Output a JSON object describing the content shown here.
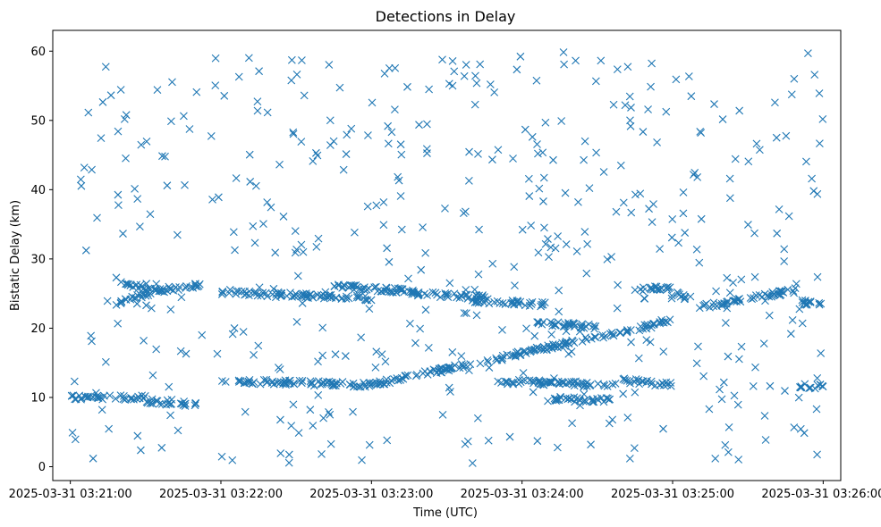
{
  "chart_data": {
    "type": "scatter",
    "title": "Detections in Delay",
    "xlabel": "Time (UTC)",
    "ylabel": "Bistatic Delay (km)",
    "marker": "x",
    "color": "#1f77b4",
    "x_unit": "time (UTC)",
    "xlim": [
      "2025-03-31 03:20:53",
      "2025-03-31 03:26:07"
    ],
    "ylim": [
      -2,
      63
    ],
    "x_ticks": [
      "2025-03-31 03:21:00",
      "2025-03-31 03:22:00",
      "2025-03-31 03:23:00",
      "2025-03-31 03:24:00",
      "2025-03-31 03:25:00",
      "2025-03-31 03:26:00"
    ],
    "y_ticks": [
      0,
      10,
      20,
      30,
      40,
      50,
      60
    ],
    "grid": false,
    "trends": [
      {
        "x": [
          "2025-03-31 03:21:00",
          "2025-03-31 03:21:30"
        ],
        "y": [
          10.0,
          10.0
        ]
      },
      {
        "x": [
          "2025-03-31 03:21:30",
          "2025-03-31 03:21:50"
        ],
        "y": [
          9.5,
          9.0
        ]
      },
      {
        "x": [
          "2025-03-31 03:22:00",
          "2025-03-31 03:23:00"
        ],
        "y": [
          12.4,
          11.8
        ]
      },
      {
        "x": [
          "2025-03-31 03:23:00",
          "2025-03-31 03:25:00"
        ],
        "y": [
          11.8,
          21.0
        ]
      },
      {
        "x": [
          "2025-03-31 03:23:50",
          "2025-03-31 03:24:40"
        ],
        "y": [
          12.3,
          11.8
        ]
      },
      {
        "x": [
          "2025-03-31 03:24:40",
          "2025-03-31 03:25:00"
        ],
        "y": [
          12.5,
          11.8
        ]
      },
      {
        "x": [
          "2025-03-31 03:25:50",
          "2025-03-31 03:26:00"
        ],
        "y": [
          11.6,
          11.6
        ]
      },
      {
        "x": [
          "2025-03-31 03:21:18",
          "2025-03-31 03:21:35"
        ],
        "y": [
          23.5,
          25.5
        ]
      },
      {
        "x": [
          "2025-03-31 03:21:35",
          "2025-03-31 03:21:52"
        ],
        "y": [
          25.5,
          26.2
        ]
      },
      {
        "x": [
          "2025-03-31 03:21:22",
          "2025-03-31 03:21:38"
        ],
        "y": [
          26.3,
          25.4
        ]
      },
      {
        "x": [
          "2025-03-31 03:22:00",
          "2025-03-31 03:23:00"
        ],
        "y": [
          25.2,
          24.3
        ]
      },
      {
        "x": [
          "2025-03-31 03:22:45",
          "2025-03-31 03:23:18"
        ],
        "y": [
          26.1,
          25.2
        ]
      },
      {
        "x": [
          "2025-03-31 03:23:15",
          "2025-03-31 03:23:45"
        ],
        "y": [
          25.0,
          24.5
        ]
      },
      {
        "x": [
          "2025-03-31 03:23:40",
          "2025-03-31 03:24:10"
        ],
        "y": [
          24.0,
          23.4
        ]
      },
      {
        "x": [
          "2025-03-31 03:24:45",
          "2025-03-31 03:25:00"
        ],
        "y": [
          25.5,
          26.0
        ]
      },
      {
        "x": [
          "2025-03-31 03:25:00",
          "2025-03-31 03:25:05"
        ],
        "y": [
          25.2,
          24.5
        ]
      },
      {
        "x": [
          "2025-03-31 03:25:10",
          "2025-03-31 03:25:50"
        ],
        "y": [
          23.0,
          25.5
        ]
      },
      {
        "x": [
          "2025-03-31 03:25:50",
          "2025-03-31 03:26:00"
        ],
        "y": [
          23.8,
          23.3
        ]
      },
      {
        "x": [
          "2025-03-31 03:24:05",
          "2025-03-31 03:24:30"
        ],
        "y": [
          20.8,
          20.2
        ]
      },
      {
        "x": [
          "2025-03-31 03:24:10",
          "2025-03-31 03:24:35"
        ],
        "y": [
          9.8,
          9.6
        ]
      }
    ],
    "n_points": 1300
  }
}
